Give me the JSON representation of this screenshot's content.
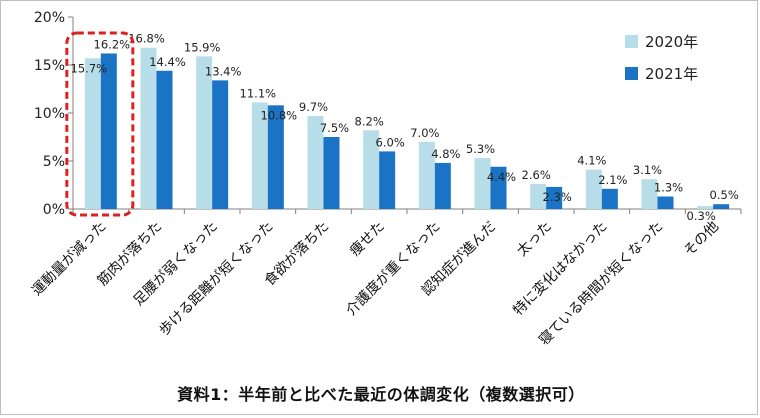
{
  "caption": "資料1：半年前と比べた最近の体調変化（複数選択可）",
  "colors": {
    "series_2020": "#b7dde8",
    "series_2021": "#1a73c4",
    "highlight_box": "#e02020",
    "axis": "#808080"
  },
  "chart_data": {
    "type": "bar",
    "title": "",
    "xlabel": "",
    "ylabel": "",
    "ylim": [
      0,
      20
    ],
    "yticks": [
      0,
      5,
      10,
      15,
      20
    ],
    "ytick_labels": [
      "0%",
      "5%",
      "10%",
      "15%",
      "20%"
    ],
    "grid": false,
    "legend_position": "top-right",
    "categories": [
      "運動量が減った",
      "筋肉が落ちた",
      "足腰が弱くなった",
      "歩ける距離が短くなった",
      "食欲が落ちた",
      "痩せた",
      "介護度が重くなった",
      "認知症が進んだ",
      "太った",
      "特に変化はなかった",
      "寝ている時間が短くなった",
      "その他"
    ],
    "series": [
      {
        "name": "2020年",
        "values": [
          15.7,
          16.8,
          15.9,
          11.1,
          9.7,
          8.2,
          7.0,
          5.3,
          2.6,
          4.1,
          3.1,
          0.3
        ],
        "labels": [
          "15.7%",
          "16.8%",
          "15.9%",
          "11.1%",
          "9.7%",
          "8.2%",
          "7.0%",
          "5.3%",
          "2.6%",
          "4.1%",
          "3.1%",
          "0.3%"
        ]
      },
      {
        "name": "2021年",
        "values": [
          16.2,
          14.4,
          13.4,
          10.8,
          7.5,
          6.0,
          4.8,
          4.4,
          2.3,
          2.1,
          1.3,
          0.5
        ],
        "labels": [
          "16.2%",
          "14.4%",
          "13.4%",
          "10.8%",
          "7.5%",
          "6.0%",
          "4.8%",
          "4.4%",
          "2.3%",
          "2.1%",
          "1.3%",
          "0.5%"
        ]
      }
    ],
    "highlighted_category": "運動量が減った"
  }
}
